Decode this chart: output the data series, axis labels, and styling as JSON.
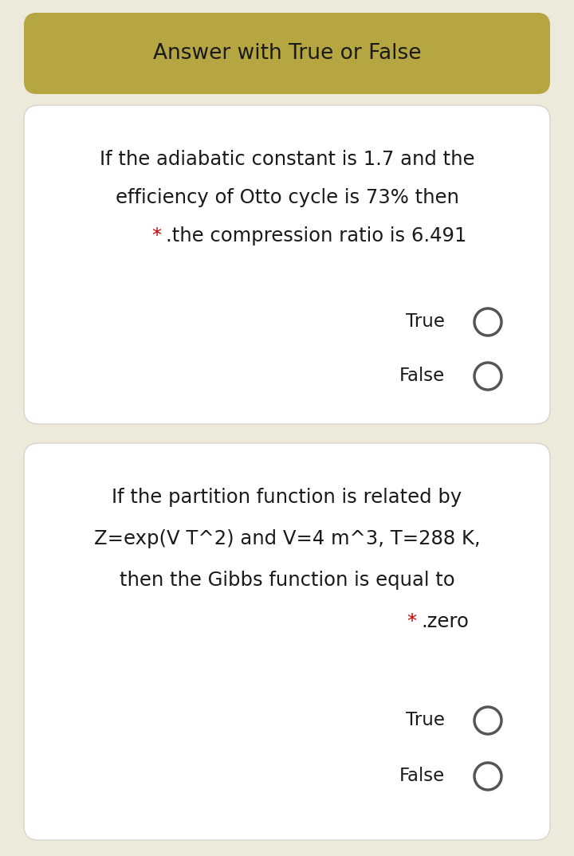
{
  "bg_color": "#ede9db",
  "header_bg": "#b5a642",
  "header_text": "Answer with True or False",
  "header_text_color": "#1a1a1a",
  "card_bg": "#ffffff",
  "card_border": "#d8d4c8",
  "q1_lines": [
    "If the adiabatic constant is 1.7 and the",
    "efficiency of Otto cycle is 73% then",
    ".the compression ratio is 6.491"
  ],
  "q1_star_line": 2,
  "q2_lines": [
    "If the partition function is related by",
    "Z=exp(V T^2) and V=4 m^3, T=288 K,",
    "then the Gibbs function is equal to",
    ".zero"
  ],
  "q2_star_line": 3,
  "star_color": "#cc0000",
  "true_label": "True",
  "false_label": "False",
  "circle_color": "#555555",
  "text_color": "#1a1a1a",
  "font_size_header": 19,
  "font_size_q": 17.5,
  "font_size_tf": 16.5
}
